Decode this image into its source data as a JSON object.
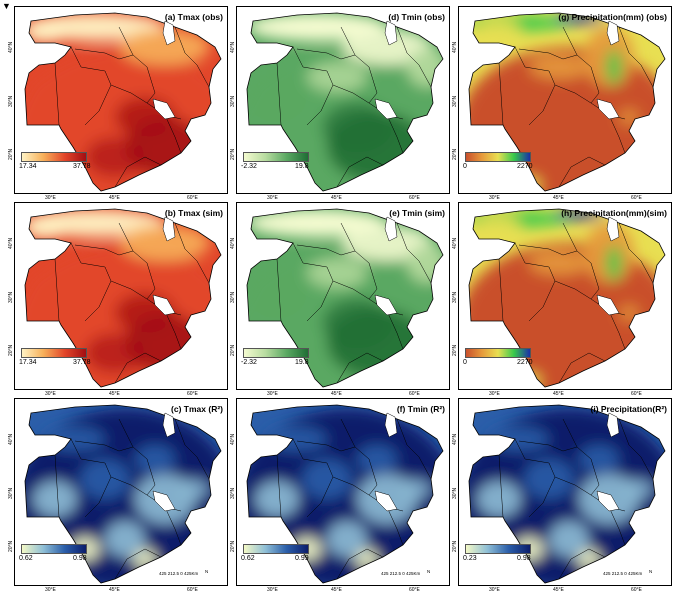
{
  "marker": "▼",
  "axes": {
    "latitudes": [
      "40°N",
      "30°N",
      "20°N"
    ],
    "longitudes": [
      "30°E",
      "45°E",
      "60°E"
    ]
  },
  "scale_bar": "425 212.5 0 425Km",
  "north_symbol": "N",
  "panels": [
    {
      "id": "a",
      "title": "(a) Tmax (obs)",
      "legend_min": "17.34",
      "legend_max": "37.78",
      "colormap": "reds"
    },
    {
      "id": "d",
      "title": "(d) Tmin (obs)",
      "legend_min": "-2.32",
      "legend_max": "19.8",
      "colormap": "greens"
    },
    {
      "id": "g",
      "title": "(g) Precipitation(mm) (obs)",
      "legend_min": "0",
      "legend_max": "2270",
      "colormap": "precip"
    },
    {
      "id": "b",
      "title": "(b) Tmax (sim)",
      "legend_min": "17.34",
      "legend_max": "37.78",
      "colormap": "reds"
    },
    {
      "id": "e",
      "title": "(e) Tmin (sim)",
      "legend_min": "-2.32",
      "legend_max": "19.8",
      "colormap": "greens"
    },
    {
      "id": "h",
      "title": "(h) Precipitation(mm)(sim)",
      "legend_min": "0",
      "legend_max": "2270",
      "colormap": "precip"
    },
    {
      "id": "c",
      "title": "(c) Tmax (R²)",
      "legend_min": "0.62",
      "legend_max": "0.98",
      "colormap": "blues"
    },
    {
      "id": "f",
      "title": "(f) Tmin (R²)",
      "legend_min": "0.62",
      "legend_max": "0.99",
      "colormap": "blues"
    },
    {
      "id": "i",
      "title": "(i) Precipitation(R²)",
      "legend_min": "0.23",
      "legend_max": "0.98",
      "colormap": "blues"
    }
  ],
  "colors": {
    "reds": [
      "#fff3c4",
      "#f7b05a",
      "#e2462a",
      "#a30e12"
    ],
    "greens": [
      "#f4fbd0",
      "#b8dca0",
      "#5aa862",
      "#1f6e35"
    ],
    "precip": [
      "#c9502c",
      "#e69a3c",
      "#e8df52",
      "#37c94b",
      "#1a2fa8"
    ],
    "blues": [
      "#f4f9c6",
      "#8fbfd6",
      "#2b5ea9",
      "#0b1d6b"
    ]
  }
}
